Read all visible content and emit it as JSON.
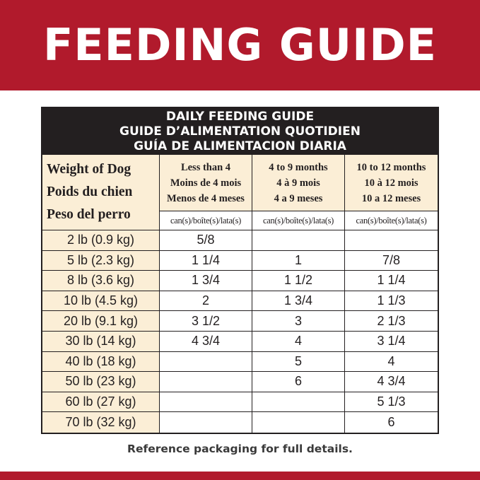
{
  "banner": {
    "title": "FEEDING GUIDE"
  },
  "guide": {
    "header_lines": [
      "DAILY FEEDING GUIDE",
      "GUIDE D’ALIMENTATION QUOTIDIEN",
      "GUÍA DE ALIMENTACION DIARIA"
    ],
    "weight_header": [
      "Weight of Dog",
      "Poids du chien",
      "Peso del perro"
    ],
    "columns": [
      {
        "lines": [
          "Less than 4",
          "Moins de 4 mois",
          "Menos de 4 meses"
        ],
        "unit": "can(s)/boîte(s)/lata(s)"
      },
      {
        "lines": [
          "4 to 9 months",
          "4 à 9 mois",
          "4 a 9 meses"
        ],
        "unit": "can(s)/boîte(s)/lata(s)"
      },
      {
        "lines": [
          "10 to 12 months",
          "10 à 12 mois",
          "10 a 12 meses"
        ],
        "unit": "can(s)/boîte(s)/lata(s)"
      }
    ],
    "rows": [
      {
        "weight": "2 lb (0.9 kg)",
        "amounts": [
          "5/8",
          "",
          ""
        ]
      },
      {
        "weight": "5 lb (2.3 kg)",
        "amounts": [
          "1 1/4",
          "1",
          "7/8"
        ]
      },
      {
        "weight": "8 lb (3.6 kg)",
        "amounts": [
          "1 3/4",
          "1 1/2",
          "1 1/4"
        ]
      },
      {
        "weight": "10 lb (4.5 kg)",
        "amounts": [
          "2",
          "1 3/4",
          "1 1/3"
        ]
      },
      {
        "weight": "20 lb (9.1 kg)",
        "amounts": [
          "3 1/2",
          "3",
          "2 1/3"
        ]
      },
      {
        "weight": "30 lb (14 kg)",
        "amounts": [
          "4 3/4",
          "4",
          "3 1/4"
        ]
      },
      {
        "weight": "40 lb (18 kg)",
        "amounts": [
          "",
          "5",
          "4"
        ]
      },
      {
        "weight": "50 lb (23 kg)",
        "amounts": [
          "",
          "6",
          "4 3/4"
        ]
      },
      {
        "weight": "60 lb (27 kg)",
        "amounts": [
          "",
          "",
          "5 1/3"
        ]
      },
      {
        "weight": "70 lb (32 kg)",
        "amounts": [
          "",
          "",
          "6"
        ]
      }
    ]
  },
  "footer": {
    "note": "Reference packaging for full details."
  },
  "colors": {
    "brand_red": "#b11a2c",
    "header_dark": "#231f20",
    "cream": "#fbeed6"
  }
}
